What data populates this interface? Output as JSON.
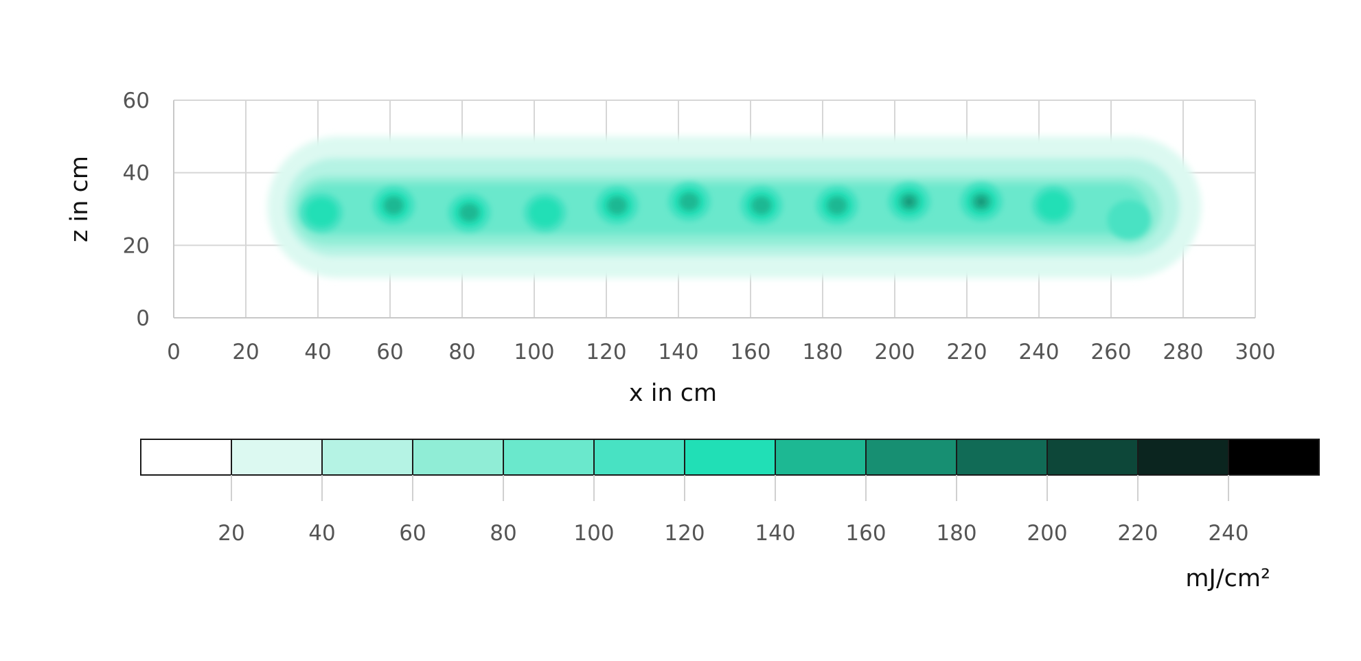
{
  "chart_data": {
    "type": "heatmap",
    "xlabel": "x in cm",
    "ylabel": "z in cm",
    "xlim": [
      0,
      300
    ],
    "ylim": [
      0,
      60
    ],
    "x_ticks": [
      "0",
      "20",
      "40",
      "60",
      "80",
      "100",
      "120",
      "140",
      "160",
      "180",
      "200",
      "220",
      "240",
      "260",
      "280",
      "300"
    ],
    "y_ticks": [
      "0",
      "20",
      "40",
      "60"
    ],
    "grid": true,
    "colorbar": {
      "unit": "mJ/cm²",
      "tick_labels": [
        "20",
        "40",
        "60",
        "80",
        "100",
        "120",
        "140",
        "160",
        "180",
        "200",
        "220",
        "240"
      ],
      "bins": [
        {
          "min": 0,
          "max": 20,
          "color": "#ffffff"
        },
        {
          "min": 20,
          "max": 40,
          "color": "#dcf9f1"
        },
        {
          "min": 40,
          "max": 60,
          "color": "#b5f3e4"
        },
        {
          "min": 60,
          "max": 80,
          "color": "#90edd6"
        },
        {
          "min": 80,
          "max": 100,
          "color": "#6ae8cc"
        },
        {
          "min": 100,
          "max": 120,
          "color": "#48e2c3"
        },
        {
          "min": 120,
          "max": 140,
          "color": "#21dfb6"
        },
        {
          "min": 140,
          "max": 160,
          "color": "#1db893"
        },
        {
          "min": 160,
          "max": 180,
          "color": "#178f72"
        },
        {
          "min": 180,
          "max": 200,
          "color": "#116b56"
        },
        {
          "min": 200,
          "max": 220,
          "color": "#0d4739"
        },
        {
          "min": 220,
          "max": 240,
          "color": "#0b251f"
        },
        {
          "min": 240,
          "max": 260,
          "color": "#000000"
        }
      ]
    },
    "spots": [
      {
        "x": 41,
        "z": 29,
        "peak": 120
      },
      {
        "x": 61,
        "z": 31,
        "peak": 150
      },
      {
        "x": 82,
        "z": 29,
        "peak": 150
      },
      {
        "x": 103,
        "z": 29,
        "peak": 130
      },
      {
        "x": 123,
        "z": 31,
        "peak": 140
      },
      {
        "x": 143,
        "z": 32,
        "peak": 150
      },
      {
        "x": 163,
        "z": 31,
        "peak": 140
      },
      {
        "x": 184,
        "z": 31,
        "peak": 150
      },
      {
        "x": 204,
        "z": 32,
        "peak": 160
      },
      {
        "x": 224,
        "z": 32,
        "peak": 160
      },
      {
        "x": 244,
        "z": 31,
        "peak": 130
      },
      {
        "x": 265,
        "z": 27,
        "peak": 100
      }
    ],
    "contours": [
      {
        "level": 20,
        "x_start": 26,
        "x_end": 285,
        "z_top": 50,
        "z_bottom": 11
      },
      {
        "level": 40,
        "x_start": 31,
        "x_end": 279,
        "z_top": 44,
        "z_bottom": 17
      },
      {
        "level": 60,
        "x_start": 33,
        "x_end": 274,
        "z_top": 39,
        "z_bottom": 20
      },
      {
        "level": 80,
        "x_start": 35,
        "x_end": 270,
        "z_top": 37,
        "z_bottom": 23
      }
    ]
  }
}
